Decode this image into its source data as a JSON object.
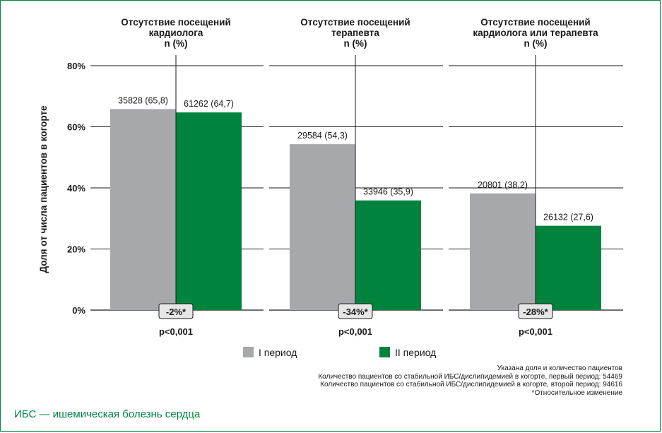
{
  "chart_data": {
    "type": "bar",
    "ylabel": "Доля от числа пациентов в когорте",
    "ylim": [
      0,
      80
    ],
    "yticks": [
      "0%",
      "20%",
      "40%",
      "60%",
      "80%"
    ],
    "grid": true,
    "legend_placement": "bottom-center",
    "series": [
      {
        "name": "I период",
        "color": "#a7a8ab"
      },
      {
        "name": "II период",
        "color": "#00843d"
      }
    ],
    "groups": [
      {
        "title_lines": [
          "Отсутствие посещений",
          "кардиолога",
          "n (%)"
        ],
        "values": [
          65.8,
          64.7
        ],
        "labels": [
          "35828 (65,8)",
          "61262 (64,7)"
        ],
        "change": "-2%*",
        "p": "p<0,001"
      },
      {
        "title_lines": [
          "Отсутствие посещений",
          "терапевта",
          "n (%)"
        ],
        "values": [
          54.3,
          35.9
        ],
        "labels": [
          "29584 (54,3)",
          "33946 (35,9)"
        ],
        "change": "-34%*",
        "p": "p<0,001"
      },
      {
        "title_lines": [
          "Отсутствие посещений",
          "кардиолога или терапевта",
          "n (%)"
        ],
        "values": [
          38.2,
          27.6
        ],
        "labels": [
          "20801 (38,2)",
          "26132 (27,6)"
        ],
        "change": "-28%*",
        "p": "p<0,001"
      }
    ]
  },
  "footnote": {
    "line1": "Указана доля и количество пациентов",
    "line2": "Количество пациентов со стабильной ИБС/дислипидемией в когорте, первый период: 54469",
    "line3": "Количество пациентов со стабильной ИБС/дислипидемией в когорте, второй период: 94616",
    "line4": "*Относительное изменение"
  },
  "abbreviation": "ИБС — ишемическая болезнь сердца"
}
